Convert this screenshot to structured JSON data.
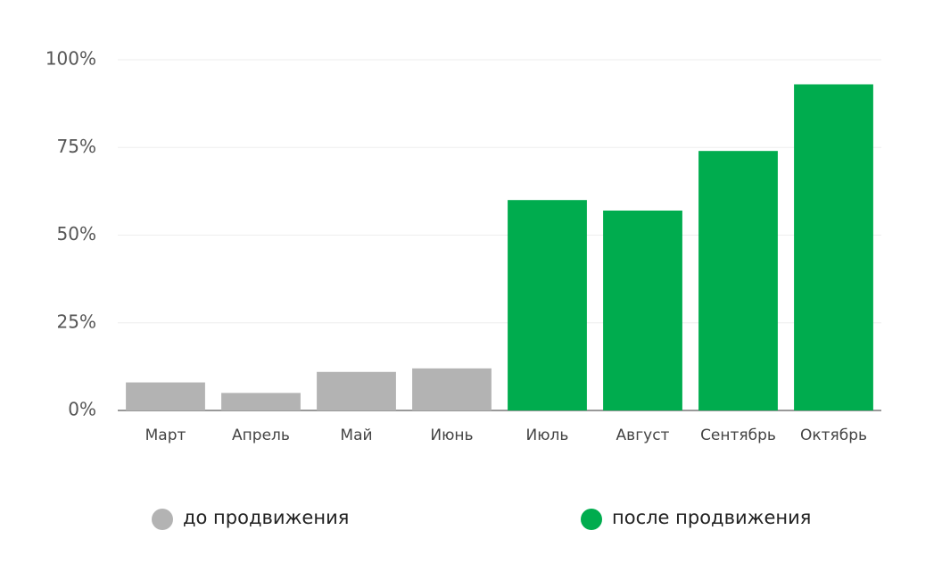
{
  "chart_data": {
    "type": "bar",
    "categories": [
      "Март",
      "Апрель",
      "Май",
      "Июнь",
      "Июль",
      "Август",
      "Сентябрь",
      "Октябрь"
    ],
    "series": [
      {
        "name": "до продвижения",
        "color": "#b3b3b3",
        "values": [
          8,
          5,
          11,
          12,
          null,
          null,
          null,
          null
        ]
      },
      {
        "name": "после продвижения",
        "color": "#00ac4e",
        "values": [
          null,
          null,
          null,
          null,
          60,
          57,
          74,
          93
        ]
      }
    ],
    "ylim": [
      0,
      100
    ],
    "yticks": [
      {
        "value": 0,
        "label": "0%"
      },
      {
        "value": 25,
        "label": "25%"
      },
      {
        "value": 50,
        "label": "50%"
      },
      {
        "value": 75,
        "label": "75%"
      },
      {
        "value": 100,
        "label": "100%"
      }
    ],
    "grid": true
  }
}
